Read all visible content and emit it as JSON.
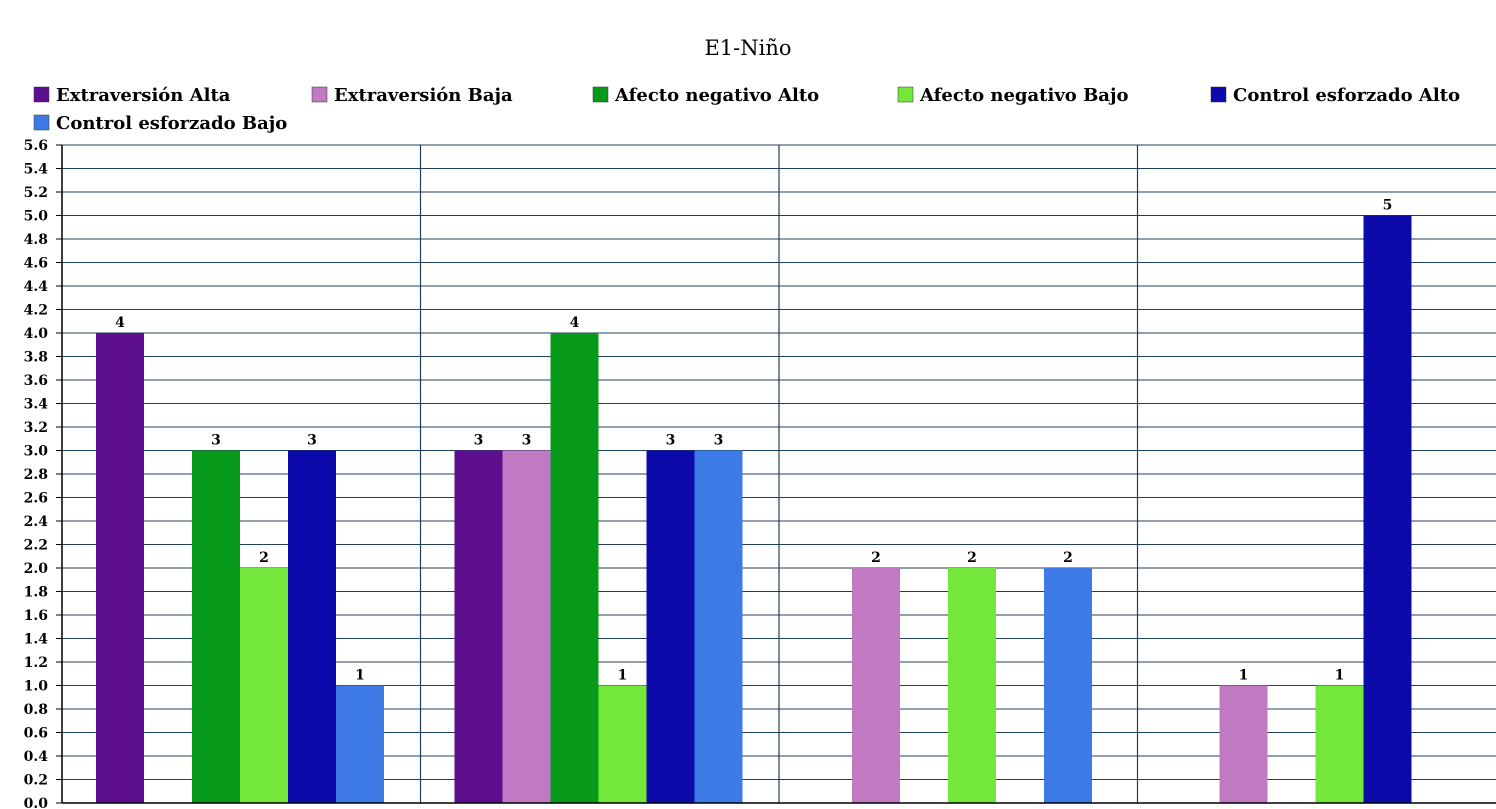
{
  "chart_data": {
    "type": "bar",
    "title": "E1-Niño",
    "xlabel": "",
    "ylabel": "",
    "ylim": [
      0,
      5.6
    ],
    "y_tick_step": 0.2,
    "grid": true,
    "legend_position": "top",
    "group_count": 4,
    "series": [
      {
        "name": "Extraversión Alta",
        "color": "#5e0f8f",
        "values": [
          4,
          3,
          null,
          null
        ]
      },
      {
        "name": "Extraversión Baja",
        "color": "#c07ac4",
        "values": [
          null,
          3,
          2,
          1
        ]
      },
      {
        "name": "Afecto negativo Alto",
        "color": "#07991a",
        "values": [
          3,
          4,
          null,
          null
        ]
      },
      {
        "name": "Afecto negativo Bajo",
        "color": "#74e83a",
        "values": [
          2,
          1,
          2,
          1
        ]
      },
      {
        "name": "Control esforzado Alto",
        "color": "#0d0aab",
        "values": [
          3,
          3,
          null,
          5
        ]
      },
      {
        "name": "Control esforzado Bajo",
        "color": "#3e7ae6",
        "values": [
          1,
          3,
          2,
          null
        ]
      }
    ]
  }
}
